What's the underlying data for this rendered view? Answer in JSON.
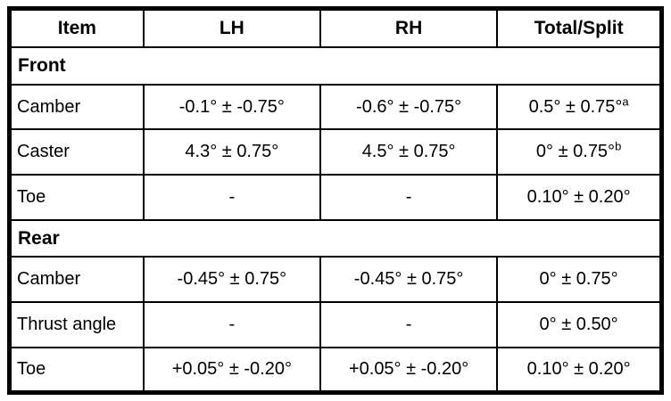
{
  "table": {
    "headers": {
      "item": "Item",
      "lh": "LH",
      "rh": "RH",
      "total": "Total/Split"
    },
    "sections": [
      {
        "title": "Front",
        "rows": [
          {
            "item": "Camber",
            "lh": "-0.1° ± -0.75°",
            "rh": "-0.6° ± -0.75°",
            "total": "0.5° ± 0.75°",
            "total_sup": "a"
          },
          {
            "item": "Caster",
            "lh": "4.3° ± 0.75°",
            "rh": "4.5° ± 0.75°",
            "total": "0° ± 0.75°",
            "total_sup": "b"
          },
          {
            "item": "Toe",
            "lh": "-",
            "rh": "-",
            "total": "0.10° ± 0.20°",
            "total_sup": ""
          }
        ]
      },
      {
        "title": "Rear",
        "rows": [
          {
            "item": "Camber",
            "lh": "-0.45° ± 0.75°",
            "rh": "-0.45° ± 0.75°",
            "total": "0° ± 0.75°",
            "total_sup": ""
          },
          {
            "item": "Thrust angle",
            "lh": "-",
            "rh": "-",
            "total": "0° ± 0.50°",
            "total_sup": ""
          },
          {
            "item": "Toe",
            "lh": "+0.05° ± -0.20°",
            "rh": "+0.05° ± -0.20°",
            "total": "0.10° ± 0.20°",
            "total_sup": ""
          }
        ]
      }
    ]
  }
}
